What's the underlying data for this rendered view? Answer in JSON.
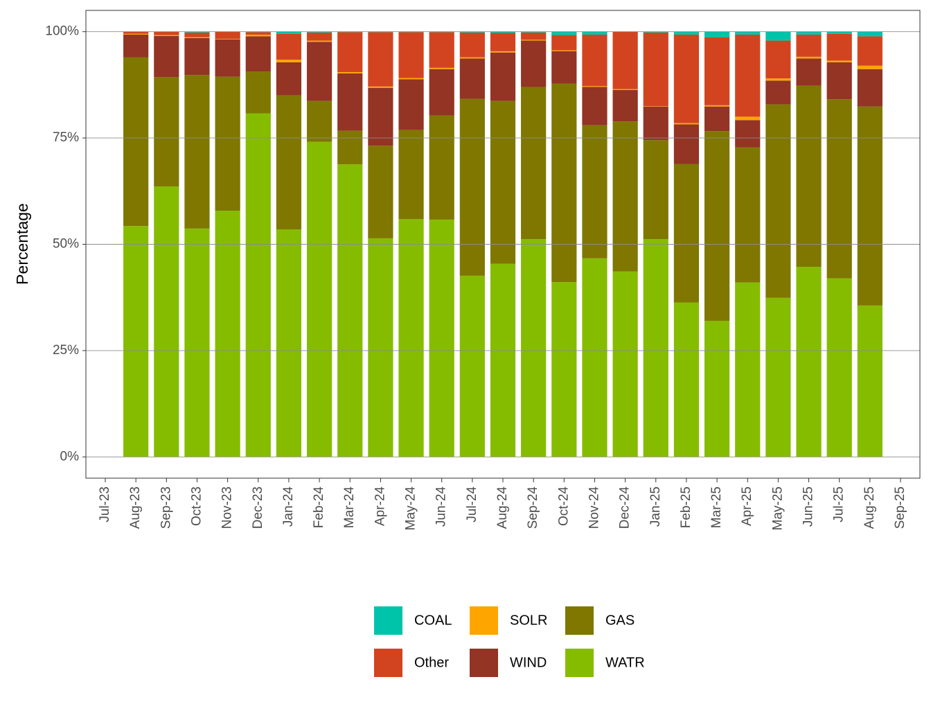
{
  "chart_data": {
    "type": "stacked_bar",
    "y_label": "Percentage",
    "categories": [
      "Jul-23",
      "Aug-23",
      "Sep-23",
      "Oct-23",
      "Nov-23",
      "Dec-23",
      "Jan-24",
      "Feb-24",
      "Mar-24",
      "Apr-24",
      "May-24",
      "Jun-24",
      "Jul-24",
      "Aug-24",
      "Sep-24",
      "Oct-24",
      "Nov-24",
      "Dec-24",
      "Jan-25",
      "Feb-25",
      "Mar-25",
      "Apr-25",
      "May-25",
      "Jun-25",
      "Jul-25",
      "Aug-25",
      "Sep-25"
    ],
    "ylim": [
      -5,
      105
    ],
    "yticks": [
      {
        "value": 0,
        "label": "0%"
      },
      {
        "value": 25,
        "label": "25%"
      },
      {
        "value": 50,
        "label": "50%"
      },
      {
        "value": 75,
        "label": "75%"
      },
      {
        "value": 100,
        "label": "100%"
      }
    ],
    "grid": true,
    "legend_position": "bottom",
    "series": [
      {
        "name": "COAL",
        "color": "#00c4aa",
        "values": [
          null,
          0,
          0,
          0.2,
          0,
          0.1,
          0.5,
          0.2,
          0.1,
          0.1,
          0.1,
          0.1,
          0.2,
          0.3,
          0.2,
          0.8,
          0.7,
          0,
          0.2,
          0.7,
          1.3,
          0.7,
          2.1,
          0.7,
          0.5,
          1.1,
          null
        ]
      },
      {
        "name": "Other",
        "color": "#d2441f",
        "values": [
          null,
          0.5,
          0.8,
          1.1,
          1.7,
          0.6,
          6.1,
          1.9,
          9.4,
          12.8,
          10.8,
          8.4,
          5.8,
          4.3,
          1.7,
          3.6,
          12.1,
          13.5,
          17.3,
          20.8,
          16.0,
          19.3,
          8.9,
          5.2,
          6.3,
          6.9,
          null
        ]
      },
      {
        "name": "SOLR",
        "color": "#ffa500",
        "values": [
          null,
          0.2,
          0.2,
          0.2,
          0.1,
          0.4,
          0.6,
          0.3,
          0.3,
          0.3,
          0.3,
          0.3,
          0.3,
          0.3,
          0.2,
          0.2,
          0.2,
          0.2,
          0.1,
          0.3,
          0.3,
          0.8,
          0.5,
          0.4,
          0.4,
          0.8,
          null
        ]
      },
      {
        "name": "WIND",
        "color": "#933424",
        "values": [
          null,
          5.3,
          9.7,
          8.7,
          8.8,
          8.3,
          7.8,
          13.9,
          13.5,
          13.6,
          11.9,
          10.9,
          9.5,
          11.4,
          10.9,
          7.6,
          9.0,
          7.4,
          7.9,
          9.3,
          5.8,
          6.4,
          5.6,
          6.4,
          8.7,
          8.8,
          null
        ]
      },
      {
        "name": "GAS",
        "color": "#7f7700",
        "values": [
          null,
          39.7,
          25.7,
          36.1,
          31.5,
          9.8,
          31.5,
          9.6,
          7.9,
          21.8,
          21.0,
          24.5,
          41.6,
          38.3,
          35.8,
          46.7,
          31.3,
          35.3,
          23.3,
          32.6,
          44.6,
          31.8,
          45.5,
          42.6,
          42.1,
          46.8,
          null
        ]
      },
      {
        "name": "WATR",
        "color": "#86bc00",
        "values": [
          null,
          54.3,
          63.6,
          53.7,
          57.9,
          80.8,
          53.5,
          74.1,
          68.8,
          51.4,
          55.9,
          55.8,
          42.6,
          45.4,
          51.2,
          41.1,
          46.7,
          43.6,
          51.2,
          36.3,
          32.0,
          41.0,
          37.4,
          44.7,
          42.0,
          35.6,
          null
        ]
      }
    ]
  }
}
